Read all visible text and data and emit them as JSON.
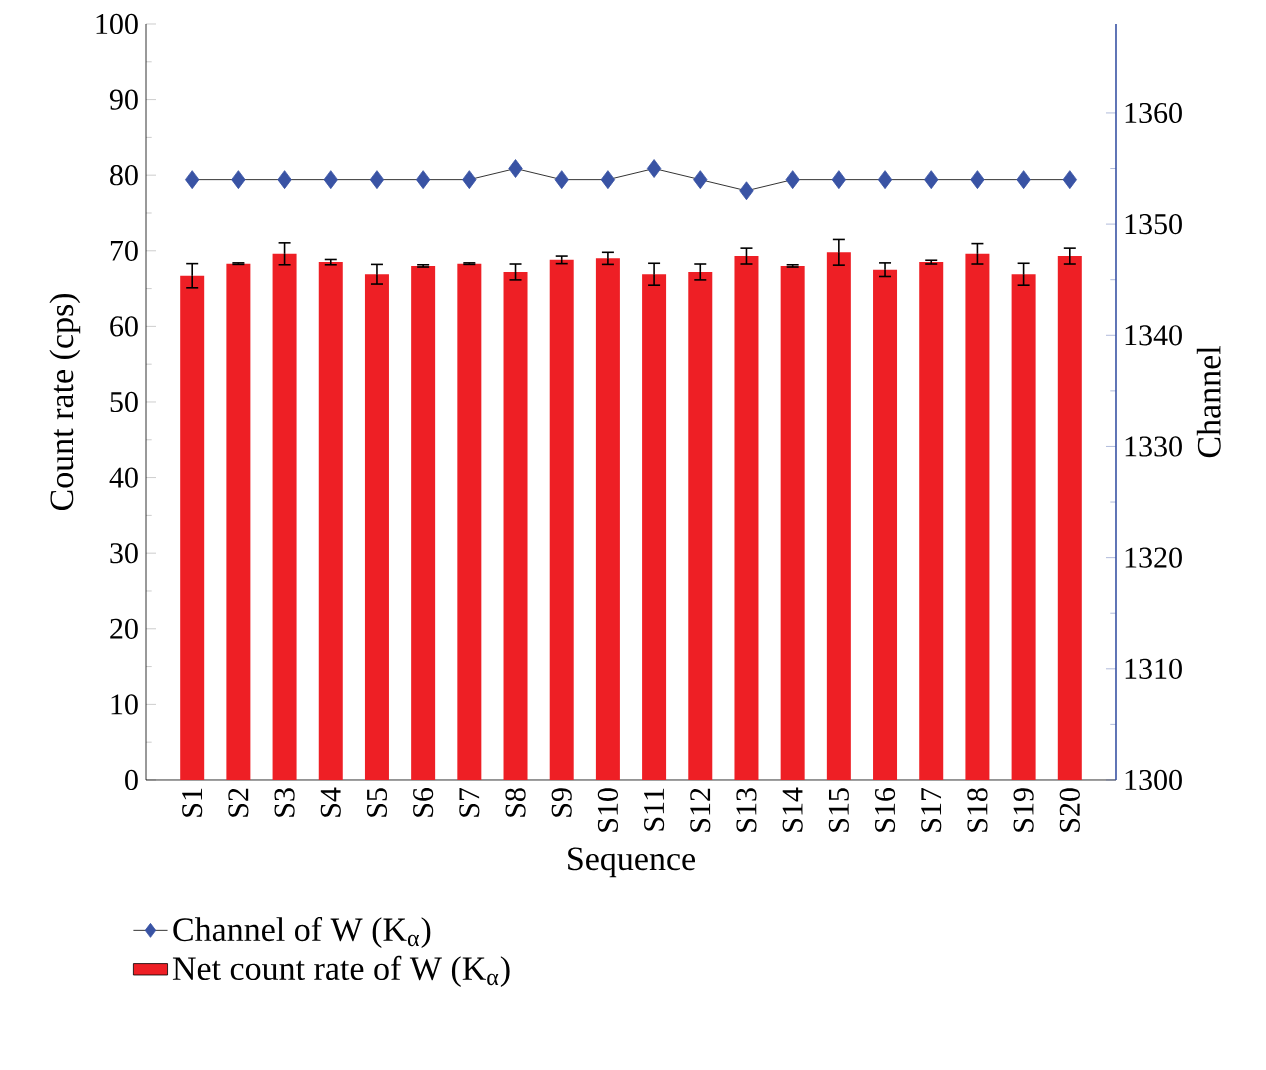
{
  "chart_data": {
    "type": "bar",
    "xlabel": "Sequence",
    "ylabel": "Count rate (cps)",
    "y2label": "Channel",
    "categories": [
      "S1",
      "S2",
      "S3",
      "S4",
      "S5",
      "S6",
      "S7",
      "S8",
      "S9",
      "S10",
      "S11",
      "S12",
      "S13",
      "S14",
      "S15",
      "S16",
      "S17",
      "S18",
      "S19",
      "S20"
    ],
    "series": [
      {
        "name": "Channel of W (K$_{α}$)",
        "type": "line",
        "axis": "y2",
        "color": "#3953a4",
        "marker": "diamond",
        "values": [
          1354,
          1354,
          1354,
          1354,
          1354,
          1354,
          1354,
          1355,
          1354,
          1354,
          1355,
          1354,
          1353,
          1354,
          1354,
          1354,
          1354,
          1354,
          1354,
          1354
        ]
      },
      {
        "name": "Net count rate of W (K$_{α}$)",
        "color": "#ee1f25",
        "values": [
          66.7,
          68.3,
          69.6,
          68.5,
          66.9,
          68.0,
          68.3,
          67.2,
          68.8,
          69.0,
          66.9,
          67.2,
          69.3,
          68.0,
          69.8,
          67.5,
          68.5,
          69.6,
          66.9,
          69.3
        ],
        "errors": [
          1.6,
          0.1,
          1.45,
          0.35,
          1.3,
          0.15,
          0.1,
          1.05,
          0.5,
          0.8,
          1.45,
          1.05,
          1.05,
          0.15,
          1.7,
          0.9,
          0.25,
          1.35,
          1.45,
          1.05
        ]
      }
    ],
    "ylim": [
      0,
      100
    ],
    "yticks": [
      0,
      10,
      20,
      30,
      40,
      50,
      60,
      70,
      80,
      90,
      100
    ],
    "y2lim": [
      1300,
      1368
    ],
    "y2ticks": [
      1300,
      1310,
      1320,
      1330,
      1340,
      1350,
      1360
    ],
    "legend": "bottom left",
    "grid": false
  }
}
